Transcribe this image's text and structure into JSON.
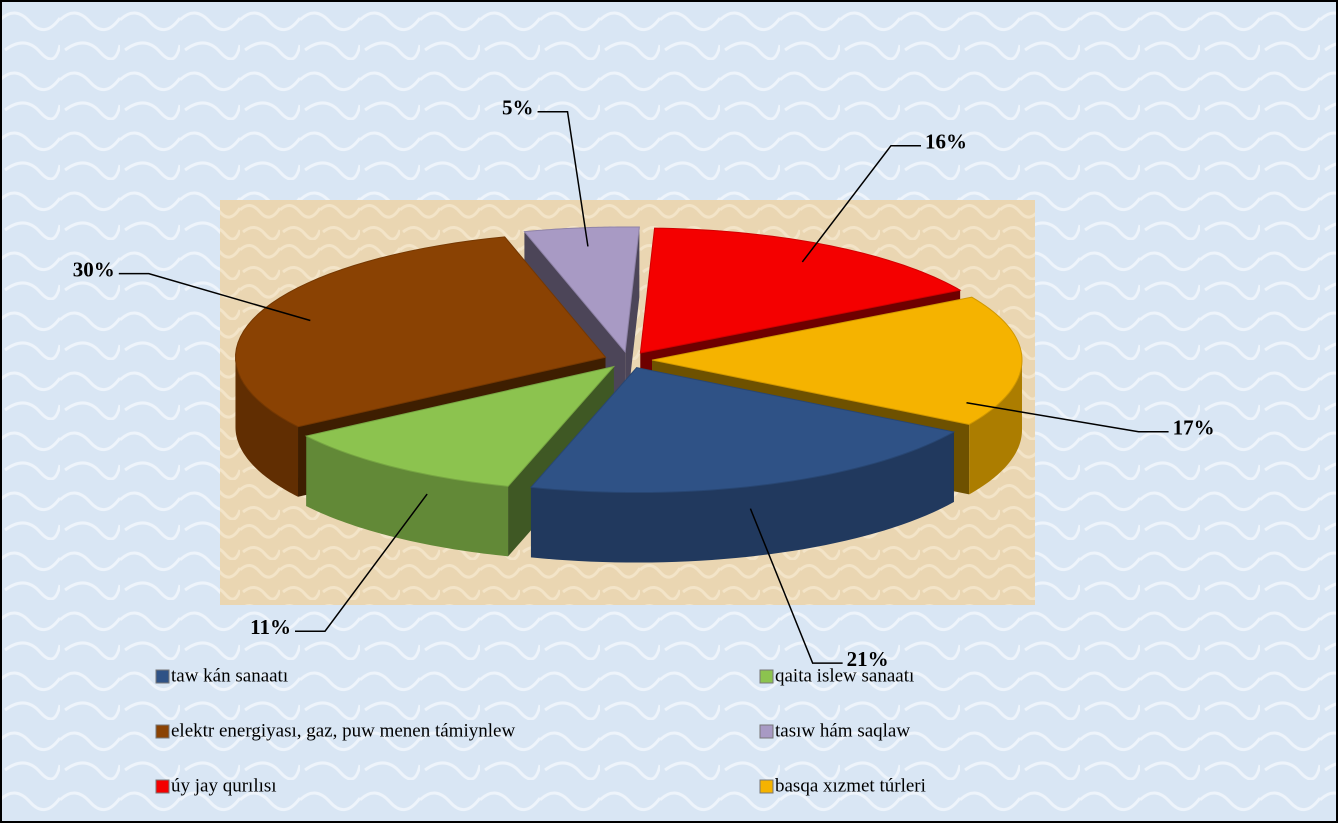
{
  "chart_data": {
    "type": "pie",
    "categories": [
      "taw kán sanaatı",
      "qaita islew sanaatı",
      "elektr energiyası, gaz, puw menen támiynlew",
      "tasıw hám saqlaw",
      "úy jay qurılısı",
      "basqa xızmet túrleri"
    ],
    "values": [
      21,
      11,
      30,
      5,
      16,
      17
    ],
    "value_labels": [
      "21%",
      "11%",
      "30%",
      "5%",
      "16%",
      "17%"
    ],
    "colors": [
      "#2f5286",
      "#8cc34f",
      "#8a4203",
      "#a89ac4",
      "#f40000",
      "#f5b300"
    ],
    "legend": "bottom"
  }
}
